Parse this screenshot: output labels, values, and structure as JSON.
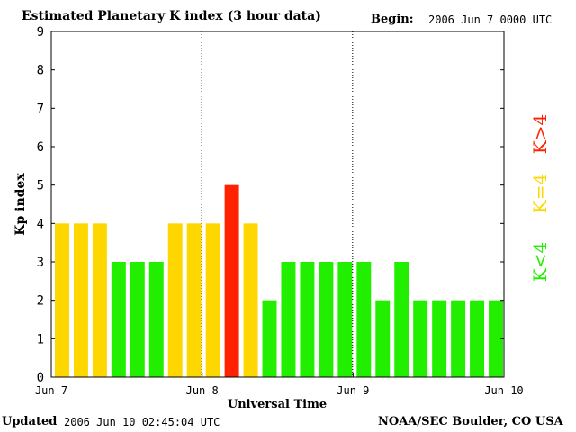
{
  "header": {
    "title": "Estimated Planetary K index (3 hour data)",
    "begin_label": "Begin:",
    "begin_value": "2006 Jun 7 0000 UTC"
  },
  "footer": {
    "updated_label": "Updated",
    "updated_value": "2006 Jun 10 02:45:04 UTC",
    "source": "NOAA/SEC Boulder, CO USA"
  },
  "legend": {
    "low": "K<4",
    "mid": "K=4",
    "high": "K>4"
  },
  "colors": {
    "low": "#22ee00",
    "mid": "#ffd700",
    "high": "#ff2200",
    "axis": "#000000"
  },
  "chart_data": {
    "type": "bar",
    "title": "Estimated Planetary K index (3 hour data)",
    "xlabel": "Universal Time",
    "ylabel": "Kp index",
    "ylim": [
      0,
      9
    ],
    "yticks": [
      "0",
      "1",
      "2",
      "3",
      "4",
      "5",
      "6",
      "7",
      "8",
      "9"
    ],
    "xticks": [
      "Jun 7",
      "Jun 8",
      "Jun 9",
      "Jun 10"
    ],
    "day_separators": [
      8,
      16
    ],
    "categories": [
      "Jun 7 00",
      "Jun 7 03",
      "Jun 7 06",
      "Jun 7 09",
      "Jun 7 12",
      "Jun 7 15",
      "Jun 7 18",
      "Jun 7 21",
      "Jun 8 00",
      "Jun 8 03",
      "Jun 8 06",
      "Jun 8 09",
      "Jun 8 12",
      "Jun 8 15",
      "Jun 8 18",
      "Jun 8 21",
      "Jun 9 00",
      "Jun 9 03",
      "Jun 9 06",
      "Jun 9 09",
      "Jun 9 12",
      "Jun 9 15",
      "Jun 9 18",
      "Jun 9 21"
    ],
    "values": [
      4,
      4,
      4,
      3,
      3,
      3,
      4,
      4,
      4,
      5,
      4,
      2,
      3,
      3,
      3,
      3,
      3,
      2,
      3,
      2,
      2,
      2,
      2,
      2
    ]
  }
}
